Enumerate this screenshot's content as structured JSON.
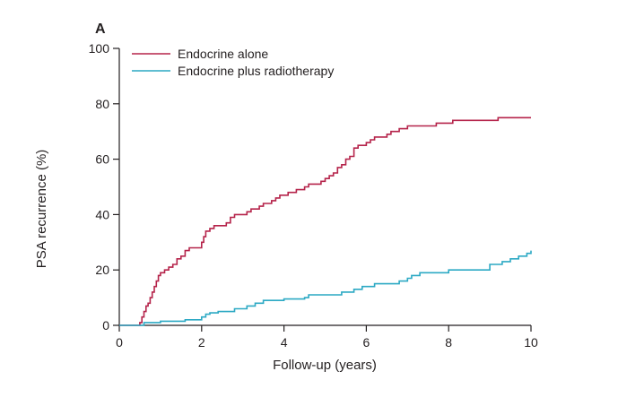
{
  "chart_data": {
    "type": "line",
    "panel_label": "A",
    "title": "",
    "xlabel": "Follow-up (years)",
    "ylabel": "PSA recurrence (%)",
    "xlim": [
      0,
      10
    ],
    "ylim": [
      0,
      100
    ],
    "x_ticks": [
      0,
      2,
      4,
      6,
      8,
      10
    ],
    "y_ticks": [
      0,
      20,
      40,
      60,
      80,
      100
    ],
    "grid": false,
    "legend_position": "top-left",
    "series": [
      {
        "name": "Endocrine alone",
        "color": "#b5234a",
        "step": true,
        "points": [
          [
            0,
            0
          ],
          [
            0.5,
            1
          ],
          [
            0.55,
            3
          ],
          [
            0.6,
            5
          ],
          [
            0.65,
            7
          ],
          [
            0.7,
            8
          ],
          [
            0.75,
            10
          ],
          [
            0.8,
            12
          ],
          [
            0.85,
            14
          ],
          [
            0.9,
            16
          ],
          [
            0.95,
            18
          ],
          [
            1.0,
            19
          ],
          [
            1.1,
            20
          ],
          [
            1.2,
            21
          ],
          [
            1.3,
            22
          ],
          [
            1.4,
            24
          ],
          [
            1.5,
            25
          ],
          [
            1.6,
            27
          ],
          [
            1.7,
            28
          ],
          [
            1.8,
            28
          ],
          [
            2.0,
            30
          ],
          [
            2.05,
            32
          ],
          [
            2.1,
            34
          ],
          [
            2.2,
            35
          ],
          [
            2.3,
            36
          ],
          [
            2.6,
            37
          ],
          [
            2.7,
            39
          ],
          [
            2.8,
            40
          ],
          [
            3.1,
            41
          ],
          [
            3.2,
            42
          ],
          [
            3.4,
            43
          ],
          [
            3.5,
            44
          ],
          [
            3.7,
            45
          ],
          [
            3.8,
            46
          ],
          [
            3.9,
            47
          ],
          [
            4.1,
            48
          ],
          [
            4.3,
            49
          ],
          [
            4.5,
            50
          ],
          [
            4.6,
            51
          ],
          [
            4.9,
            52
          ],
          [
            5.0,
            53
          ],
          [
            5.1,
            54
          ],
          [
            5.2,
            55
          ],
          [
            5.3,
            57
          ],
          [
            5.4,
            58
          ],
          [
            5.5,
            60
          ],
          [
            5.6,
            61
          ],
          [
            5.7,
            64
          ],
          [
            5.8,
            65
          ],
          [
            6.0,
            66
          ],
          [
            6.1,
            67
          ],
          [
            6.2,
            68
          ],
          [
            6.5,
            69
          ],
          [
            6.6,
            70
          ],
          [
            6.8,
            71
          ],
          [
            7.0,
            72
          ],
          [
            7.7,
            73
          ],
          [
            8.1,
            74
          ],
          [
            9.2,
            75
          ],
          [
            10.0,
            75
          ]
        ]
      },
      {
        "name": "Endocrine plus radiotherapy",
        "color": "#2ca9c4",
        "step": true,
        "points": [
          [
            0,
            0
          ],
          [
            0.5,
            0
          ],
          [
            0.6,
            1
          ],
          [
            1.0,
            1.5
          ],
          [
            1.6,
            2
          ],
          [
            2.0,
            3
          ],
          [
            2.1,
            4
          ],
          [
            2.2,
            4.5
          ],
          [
            2.4,
            5
          ],
          [
            2.8,
            6
          ],
          [
            3.1,
            7
          ],
          [
            3.3,
            8
          ],
          [
            3.5,
            9
          ],
          [
            4.0,
            9.5
          ],
          [
            4.5,
            10
          ],
          [
            4.6,
            11
          ],
          [
            5.4,
            12
          ],
          [
            5.7,
            13
          ],
          [
            5.9,
            14
          ],
          [
            6.2,
            15
          ],
          [
            6.8,
            16
          ],
          [
            7.0,
            17
          ],
          [
            7.1,
            18
          ],
          [
            7.3,
            19
          ],
          [
            8.0,
            20
          ],
          [
            9.0,
            22
          ],
          [
            9.3,
            23
          ],
          [
            9.5,
            24
          ],
          [
            9.7,
            25
          ],
          [
            9.9,
            26
          ],
          [
            10.0,
            27
          ]
        ]
      }
    ]
  }
}
